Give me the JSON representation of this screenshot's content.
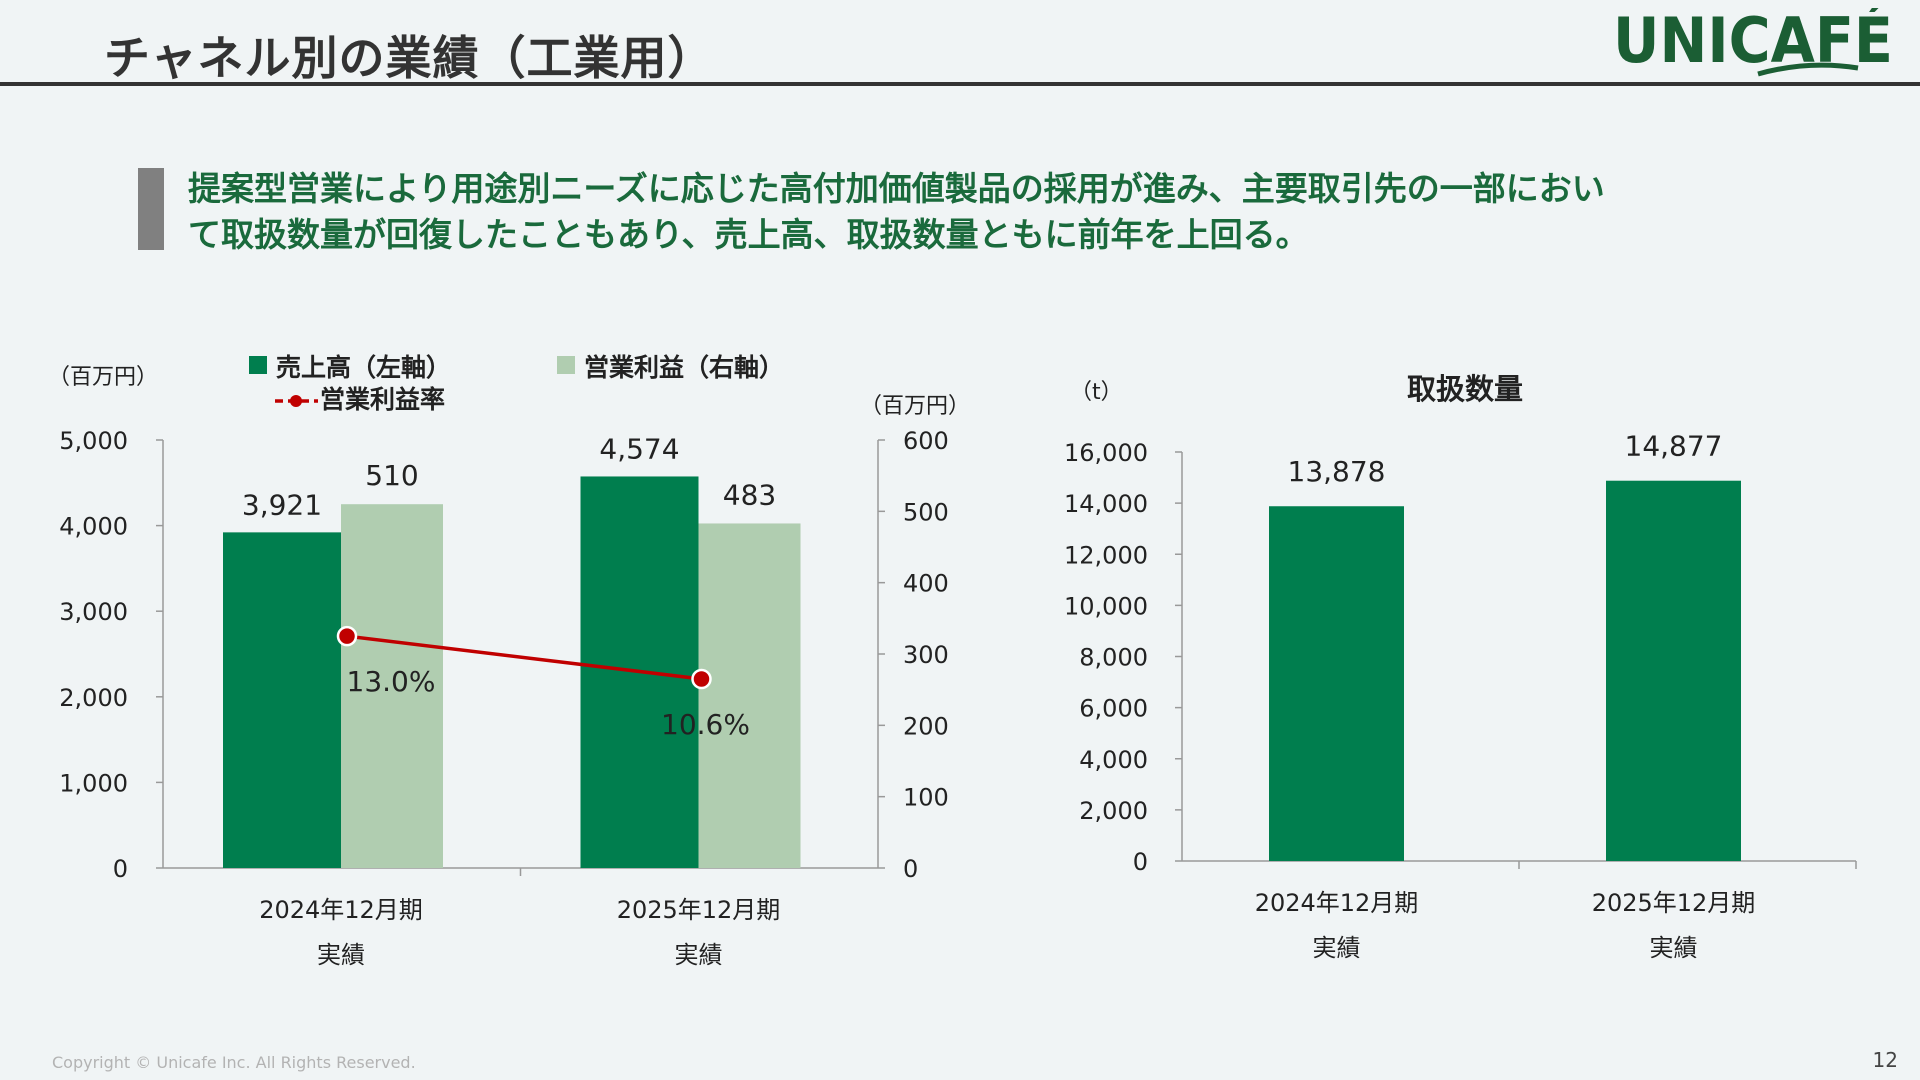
{
  "slide": {
    "title": "チャネル別の業績（工業用）",
    "logo_text": "UNICAFÉ",
    "headline_line1": "提案型営業により用途別ニーズに応じた高付加価値製品の採用が進み、主要取引先の一部におい",
    "headline_line2": "て取扱数量が回復したこともあり、売上高、取扱数量ともに前年を上回る。",
    "copyright": "Copyright © Unicafe Inc. All Rights Reserved.",
    "page_number": "12"
  },
  "colors": {
    "sales": "#007e4e",
    "profit": "#b0cdb0",
    "margin_line": "#c00000",
    "headline": "#1a6a3c",
    "logo": "#1b5e34"
  },
  "chart_data": [
    {
      "type": "bar",
      "categories": [
        "2024年12月期",
        "2025年12月期"
      ],
      "category_sublabels": [
        "実績",
        "実績"
      ],
      "left_unit": "（百万円）",
      "right_unit": "（百万円）",
      "left_ticks": [
        "0",
        "1,000",
        "2,000",
        "3,000",
        "4,000",
        "5,000"
      ],
      "right_ticks": [
        "0",
        "100",
        "200",
        "300",
        "400",
        "500",
        "600"
      ],
      "ylim_left": [
        0,
        5000
      ],
      "ylim_right": [
        0,
        600
      ],
      "series": [
        {
          "name": "売上高（左軸）",
          "axis": "left",
          "values": [
            3921,
            4574
          ],
          "labels": [
            "3,921",
            "4,574"
          ]
        },
        {
          "name": "営業利益（右軸）",
          "axis": "right",
          "values": [
            510,
            483
          ],
          "labels": [
            "510",
            "483"
          ]
        }
      ],
      "line_series": {
        "name": "営業利益率",
        "values": [
          13.0,
          10.6
        ],
        "labels": [
          "13.0%",
          "10.6%"
        ]
      },
      "legend_position": "top"
    },
    {
      "type": "bar",
      "title": "取扱数量",
      "unit": "（t）",
      "categories": [
        "2024年12月期",
        "2025年12月期"
      ],
      "category_sublabels": [
        "実績",
        "実績"
      ],
      "ylim": [
        0,
        16000
      ],
      "ticks": [
        "0",
        "2,000",
        "4,000",
        "6,000",
        "8,000",
        "10,000",
        "12,000",
        "14,000",
        "16,000"
      ],
      "values": [
        13878,
        14877
      ],
      "labels": [
        "13,878",
        "14,877"
      ]
    }
  ]
}
